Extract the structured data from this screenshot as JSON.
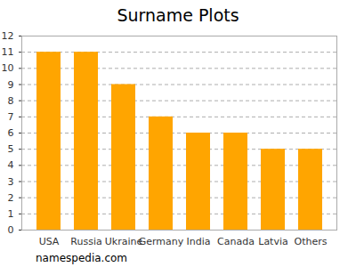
{
  "chart_data": {
    "type": "bar",
    "title": "Surname Plots",
    "categories": [
      "USA",
      "Russia",
      "Ukraine",
      "Germany",
      "India",
      "Canada",
      "Latvia",
      "Others"
    ],
    "values": [
      11,
      11,
      9,
      7,
      6,
      6,
      5,
      5
    ],
    "color": "#ffa500",
    "ylim": [
      0,
      12
    ],
    "yticks": [
      0,
      1,
      2,
      3,
      4,
      5,
      6,
      7,
      8,
      9,
      10,
      11,
      12
    ],
    "grid": true,
    "caption": "namespedia.com"
  }
}
